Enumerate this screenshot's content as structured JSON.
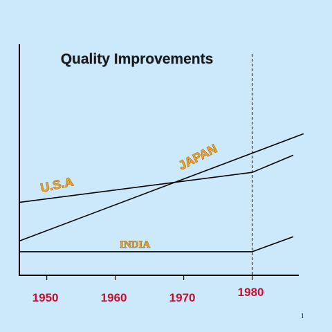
{
  "page_number": "1",
  "chart_data": {
    "type": "line",
    "title": "Quality Improvements",
    "xlabel": "",
    "ylabel": "",
    "x_ticks": [
      "1950",
      "1960",
      "1970",
      "1980"
    ],
    "xlim": [
      1946,
      1996
    ],
    "ylim": [
      0,
      100
    ],
    "reference_line": {
      "x": 1980,
      "style": "dashed"
    },
    "series": [
      {
        "name": "U.S.A",
        "x": [
          1946,
          1980
        ],
        "y": [
          34,
          48
        ]
      },
      {
        "name": "JAPAN",
        "x": [
          1946,
          1987.5
        ],
        "y": [
          16,
          66
        ]
      },
      {
        "name": "INDIA",
        "x": [
          1946,
          1980,
          1986
        ],
        "y": [
          11,
          11,
          18
        ]
      },
      {
        "x": [
          1980,
          1986
        ],
        "y": [
          48,
          56
        ]
      }
    ],
    "grid": false,
    "colors": {
      "line": "#000000",
      "tick_label": "#c8102e",
      "series_label": "#f0a020",
      "background": "#cce9fb"
    }
  }
}
